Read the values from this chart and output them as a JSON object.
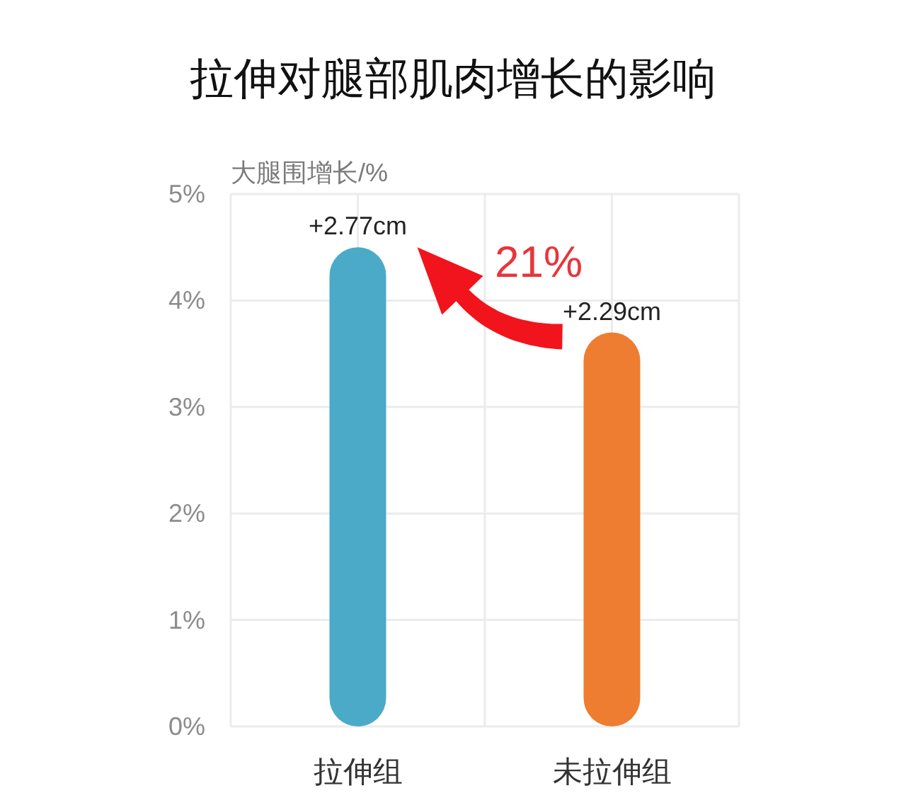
{
  "chart_data": {
    "type": "bar",
    "title": "拉伸对腿部肌肉增长的影响",
    "ylabel": "大腿围增长/%",
    "categories": [
      "拉伸组",
      "未拉伸组"
    ],
    "values": [
      4.5,
      3.7
    ],
    "colors": [
      "#4baac8",
      "#ee7d31"
    ],
    "ylim": [
      0,
      5
    ],
    "yticks": [
      {
        "value": 0,
        "label": "0%"
      },
      {
        "value": 1,
        "label": "1%"
      },
      {
        "value": 2,
        "label": "2%"
      },
      {
        "value": 3,
        "label": "3%"
      },
      {
        "value": 4,
        "label": "4%"
      },
      {
        "value": 5,
        "label": "5%"
      }
    ],
    "grid": true,
    "annotations": [
      {
        "text": "+2.77cm",
        "x": "拉伸组",
        "y": 4.5
      },
      {
        "text": "+2.29cm",
        "x": "未拉伸组",
        "y": 3.7
      },
      "21%"
    ]
  }
}
